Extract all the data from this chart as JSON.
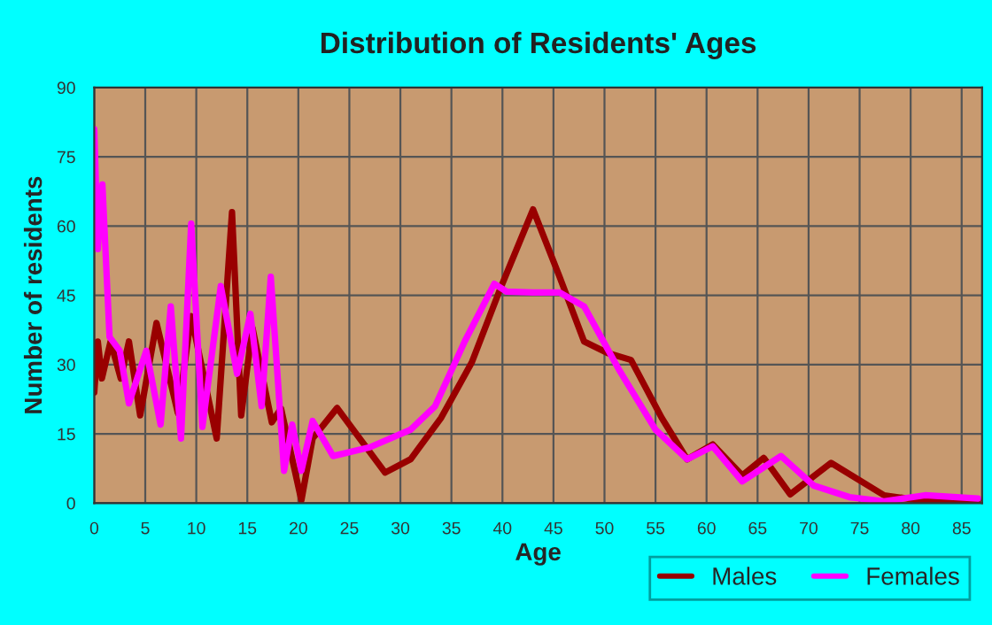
{
  "chart_data": {
    "type": "line",
    "title": "Distribution of Residents' Ages",
    "xlabel": "Age",
    "ylabel": "Number of residents",
    "xlim": [
      0,
      87
    ],
    "xticks": [
      0,
      5,
      10,
      15,
      20,
      25,
      30,
      35,
      40,
      45,
      50,
      55,
      60,
      65,
      70,
      75,
      80,
      85
    ],
    "ylim": [
      0,
      90
    ],
    "yticks": [
      0,
      15,
      30,
      45,
      60,
      75,
      90
    ],
    "grid": true,
    "legend": "bottom right",
    "marker": "none",
    "line_style": "solid",
    "series": [
      {
        "name": "Males",
        "color": "#990000",
        "x": [
          0,
          0.35,
          0.75,
          1.6,
          2.6,
          3.4,
          4.5,
          6.1,
          8.2,
          9.5,
          12,
          13.5,
          14.4,
          15.5,
          17.4,
          18.3,
          20.3,
          21.4,
          23.8,
          28.5,
          31,
          34,
          37,
          39.8,
          43,
          45.6,
          48,
          50.3,
          52.6,
          55.6,
          58.1,
          60.6,
          63.5,
          65.6,
          68.2,
          72.2,
          77.4,
          80.9,
          86.6
        ],
        "values": [
          24,
          35,
          27,
          35,
          27,
          35,
          19,
          39,
          19.5,
          40.5,
          14,
          63,
          19,
          38,
          17.5,
          20.5,
          0.6,
          14,
          20.6,
          6.6,
          9.5,
          18.5,
          30.5,
          46.5,
          63.6,
          49,
          35,
          32.5,
          31,
          18.5,
          9.5,
          12.7,
          6,
          9.8,
          1.9,
          8.7,
          1.7,
          0.6,
          0.6
        ]
      },
      {
        "name": "Females",
        "color": "#ff00ff",
        "x": [
          0,
          0.35,
          0.8,
          1.5,
          2.5,
          3.4,
          5.1,
          6.5,
          7.5,
          8.5,
          9.5,
          10.6,
          12.4,
          14,
          15.3,
          16.4,
          17.3,
          18.6,
          19.4,
          20.3,
          21.4,
          23.4,
          27,
          31,
          33.4,
          36.3,
          39.2,
          40.4,
          43,
          45.6,
          48,
          51.5,
          55,
          58.1,
          60.6,
          63.5,
          67.3,
          70.5,
          74,
          77.4,
          81.4,
          86.6
        ],
        "values": [
          81,
          55,
          69,
          36,
          33,
          21.6,
          33,
          17,
          42.6,
          14,
          60.5,
          16.5,
          47,
          28,
          41,
          21,
          49,
          7,
          17,
          7,
          17.8,
          10.2,
          12.1,
          15.9,
          21,
          35,
          47.5,
          45.8,
          45.6,
          45.6,
          42.6,
          28.6,
          15.9,
          9.5,
          12.3,
          4.7,
          10.2,
          3.8,
          1.3,
          0.4,
          1.7,
          1
        ]
      }
    ]
  }
}
